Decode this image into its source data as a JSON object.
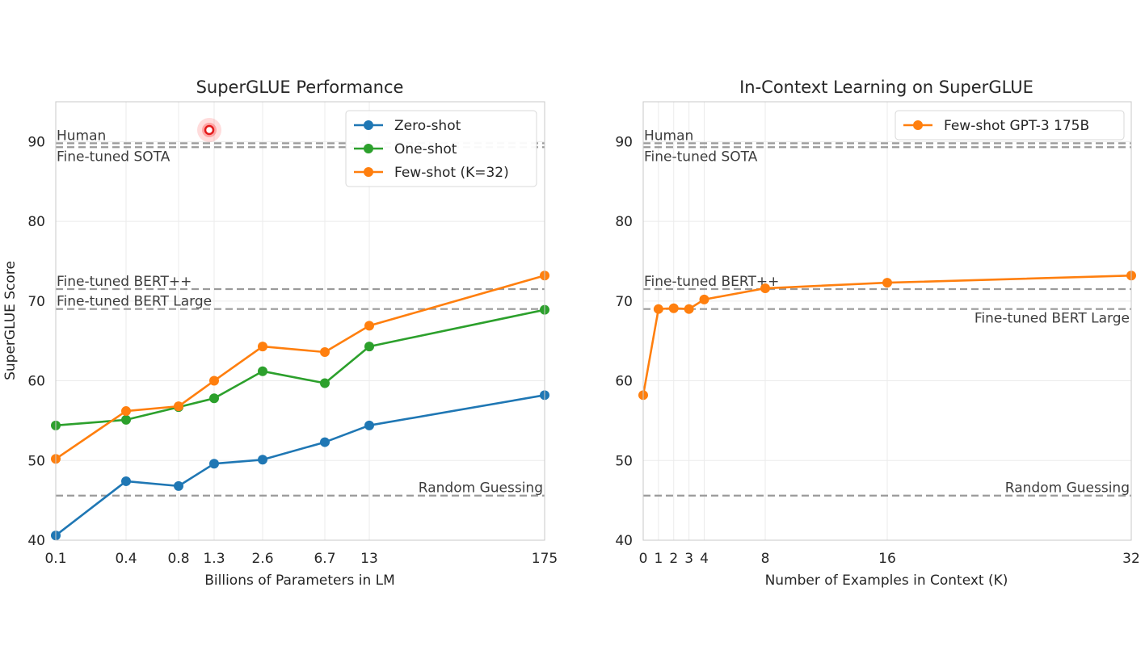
{
  "colors": {
    "zero_shot": "#1f77b4",
    "one_shot": "#2ca02c",
    "few_shot": "#ff7f0e",
    "reference_line": "#9a9a9a",
    "grid": "#ebebeb",
    "cursor": "#e31a1c"
  },
  "chart_data": [
    {
      "type": "line",
      "title": "SuperGLUE Performance",
      "xlabel": "Billions of Parameters in LM",
      "ylabel": "SuperGLUE Score",
      "categories": [
        "0.1",
        "0.4",
        "0.8",
        "1.3",
        "2.6",
        "6.7",
        "13",
        "175"
      ],
      "ylim": [
        40,
        95
      ],
      "yticks": [
        "40",
        "50",
        "60",
        "70",
        "80",
        "90"
      ],
      "grid": true,
      "legend_position": "top-right",
      "series": [
        {
          "name": "Zero-shot",
          "color_key": "zero_shot",
          "values": [
            40.6,
            47.4,
            46.8,
            49.6,
            50.1,
            52.3,
            54.4,
            58.2
          ]
        },
        {
          "name": "One-shot",
          "color_key": "one_shot",
          "values": [
            54.4,
            55.1,
            56.7,
            57.8,
            61.2,
            59.7,
            64.3,
            68.9
          ]
        },
        {
          "name": "Few-shot (K=32)",
          "color_key": "few_shot",
          "values": [
            50.2,
            56.2,
            56.8,
            60.0,
            64.3,
            63.6,
            66.9,
            73.2
          ]
        }
      ],
      "reference_lines": [
        {
          "label": "Human",
          "value": 89.8,
          "label_side": "left-above"
        },
        {
          "label": "Fine-tuned SOTA",
          "value": 89.3,
          "label_side": "left-below"
        },
        {
          "label": "Fine-tuned BERT++",
          "value": 71.5,
          "label_side": "left-above"
        },
        {
          "label": "Fine-tuned BERT Large",
          "value": 69.0,
          "label_side": "left-above"
        },
        {
          "label": "Random Guessing",
          "value": 45.6,
          "label_side": "right-above"
        }
      ]
    },
    {
      "type": "line",
      "title": "In-Context Learning on SuperGLUE",
      "xlabel": "Number of Examples in Context (K)",
      "ylabel": "",
      "xlim": [
        0,
        32
      ],
      "xticks": [
        "0",
        "1",
        "2",
        "3",
        "4",
        "8",
        "16",
        "32"
      ],
      "ylim": [
        40,
        95
      ],
      "yticks": [
        "40",
        "50",
        "60",
        "70",
        "80",
        "90"
      ],
      "grid": true,
      "legend_position": "top-right",
      "series": [
        {
          "name": "Few-shot GPT-3 175B",
          "color_key": "few_shot",
          "x": [
            0,
            1,
            2,
            3,
            4,
            8,
            16,
            32
          ],
          "values": [
            58.2,
            69.0,
            69.1,
            69.0,
            70.2,
            71.6,
            72.3,
            73.2
          ]
        }
      ],
      "reference_lines": [
        {
          "label": "Human",
          "value": 89.8,
          "label_side": "left-above"
        },
        {
          "label": "Fine-tuned SOTA",
          "value": 89.3,
          "label_side": "left-below"
        },
        {
          "label": "Fine-tuned BERT++",
          "value": 71.5,
          "label_side": "left-above"
        },
        {
          "label": "Fine-tuned BERT Large",
          "value": 69.0,
          "label_side": "right-below"
        },
        {
          "label": "Random Guessing",
          "value": 45.6,
          "label_side": "right-above"
        }
      ]
    }
  ]
}
